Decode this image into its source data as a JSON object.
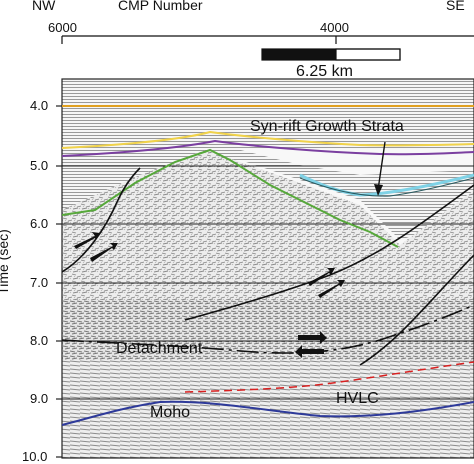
{
  "header": {
    "left_label": "NW",
    "center_label": "CMP Number",
    "right_label": "SE"
  },
  "x_axis": {
    "ticks": [
      "6000",
      "4000"
    ]
  },
  "y_axis": {
    "label": "Time (sec)",
    "ticks": [
      "4.0",
      "5.0",
      "6.0",
      "7.0",
      "8.0",
      "9.0",
      "10.0"
    ]
  },
  "scale_bar": {
    "label": "6.25 km"
  },
  "annotations": {
    "syn_rift": "Syn-rift Growth Strata",
    "detachment": "Detachment",
    "moho": "Moho",
    "hvlc": "HVLC"
  },
  "colors": {
    "reflector_orange": "#e0a020",
    "reflector_yellow": "#f0d24a",
    "reflector_purple": "#7b3fa0",
    "reflector_green": "#56a83a",
    "reflector_cyan": "#7fd2e6",
    "fault_black": "#111111",
    "hvlc_red": "#d92020",
    "moho_blue": "#2e3a9a",
    "gridline": "#222222"
  }
}
